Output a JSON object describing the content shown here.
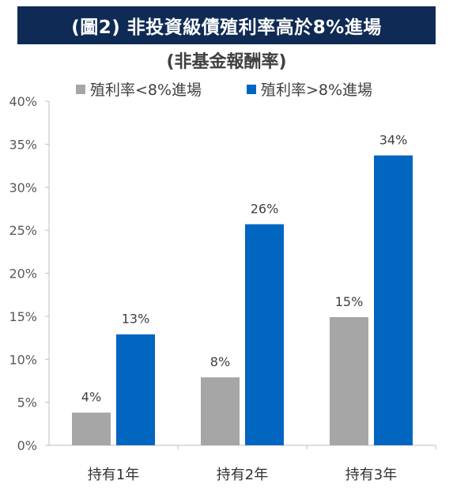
{
  "header": {
    "title": "(圖2) 非投資級債殖利率高於8%進場",
    "subtitle": "(非基金報酬率)"
  },
  "colors": {
    "title_bg": "#0f2b55",
    "series_low": "#a6a6a6",
    "series_high": "#0066c0",
    "axis": "#bfbfbf"
  },
  "chart_data": {
    "type": "bar",
    "title": "(圖2) 非投資級債殖利率高於8%進場",
    "subtitle": "(非基金報酬率)",
    "categories": [
      "持有1年",
      "持有2年",
      "持有3年"
    ],
    "series": [
      {
        "name": "殖利率<8%進場",
        "values": [
          3.8,
          7.9,
          14.9
        ],
        "labels": [
          "4%",
          "8%",
          "15%"
        ],
        "color": "#a6a6a6"
      },
      {
        "name": "殖利率>8%進場",
        "values": [
          12.9,
          25.7,
          33.7
        ],
        "labels": [
          "13%",
          "26%",
          "34%"
        ],
        "color": "#0066c0"
      }
    ],
    "ylim": [
      0,
      40
    ],
    "yticks": [
      "0%",
      "5%",
      "10%",
      "15%",
      "20%",
      "25%",
      "30%",
      "35%",
      "40%"
    ],
    "ytick_values": [
      0,
      5,
      10,
      15,
      20,
      25,
      30,
      35,
      40
    ],
    "grid": false,
    "legend": "top-left"
  }
}
